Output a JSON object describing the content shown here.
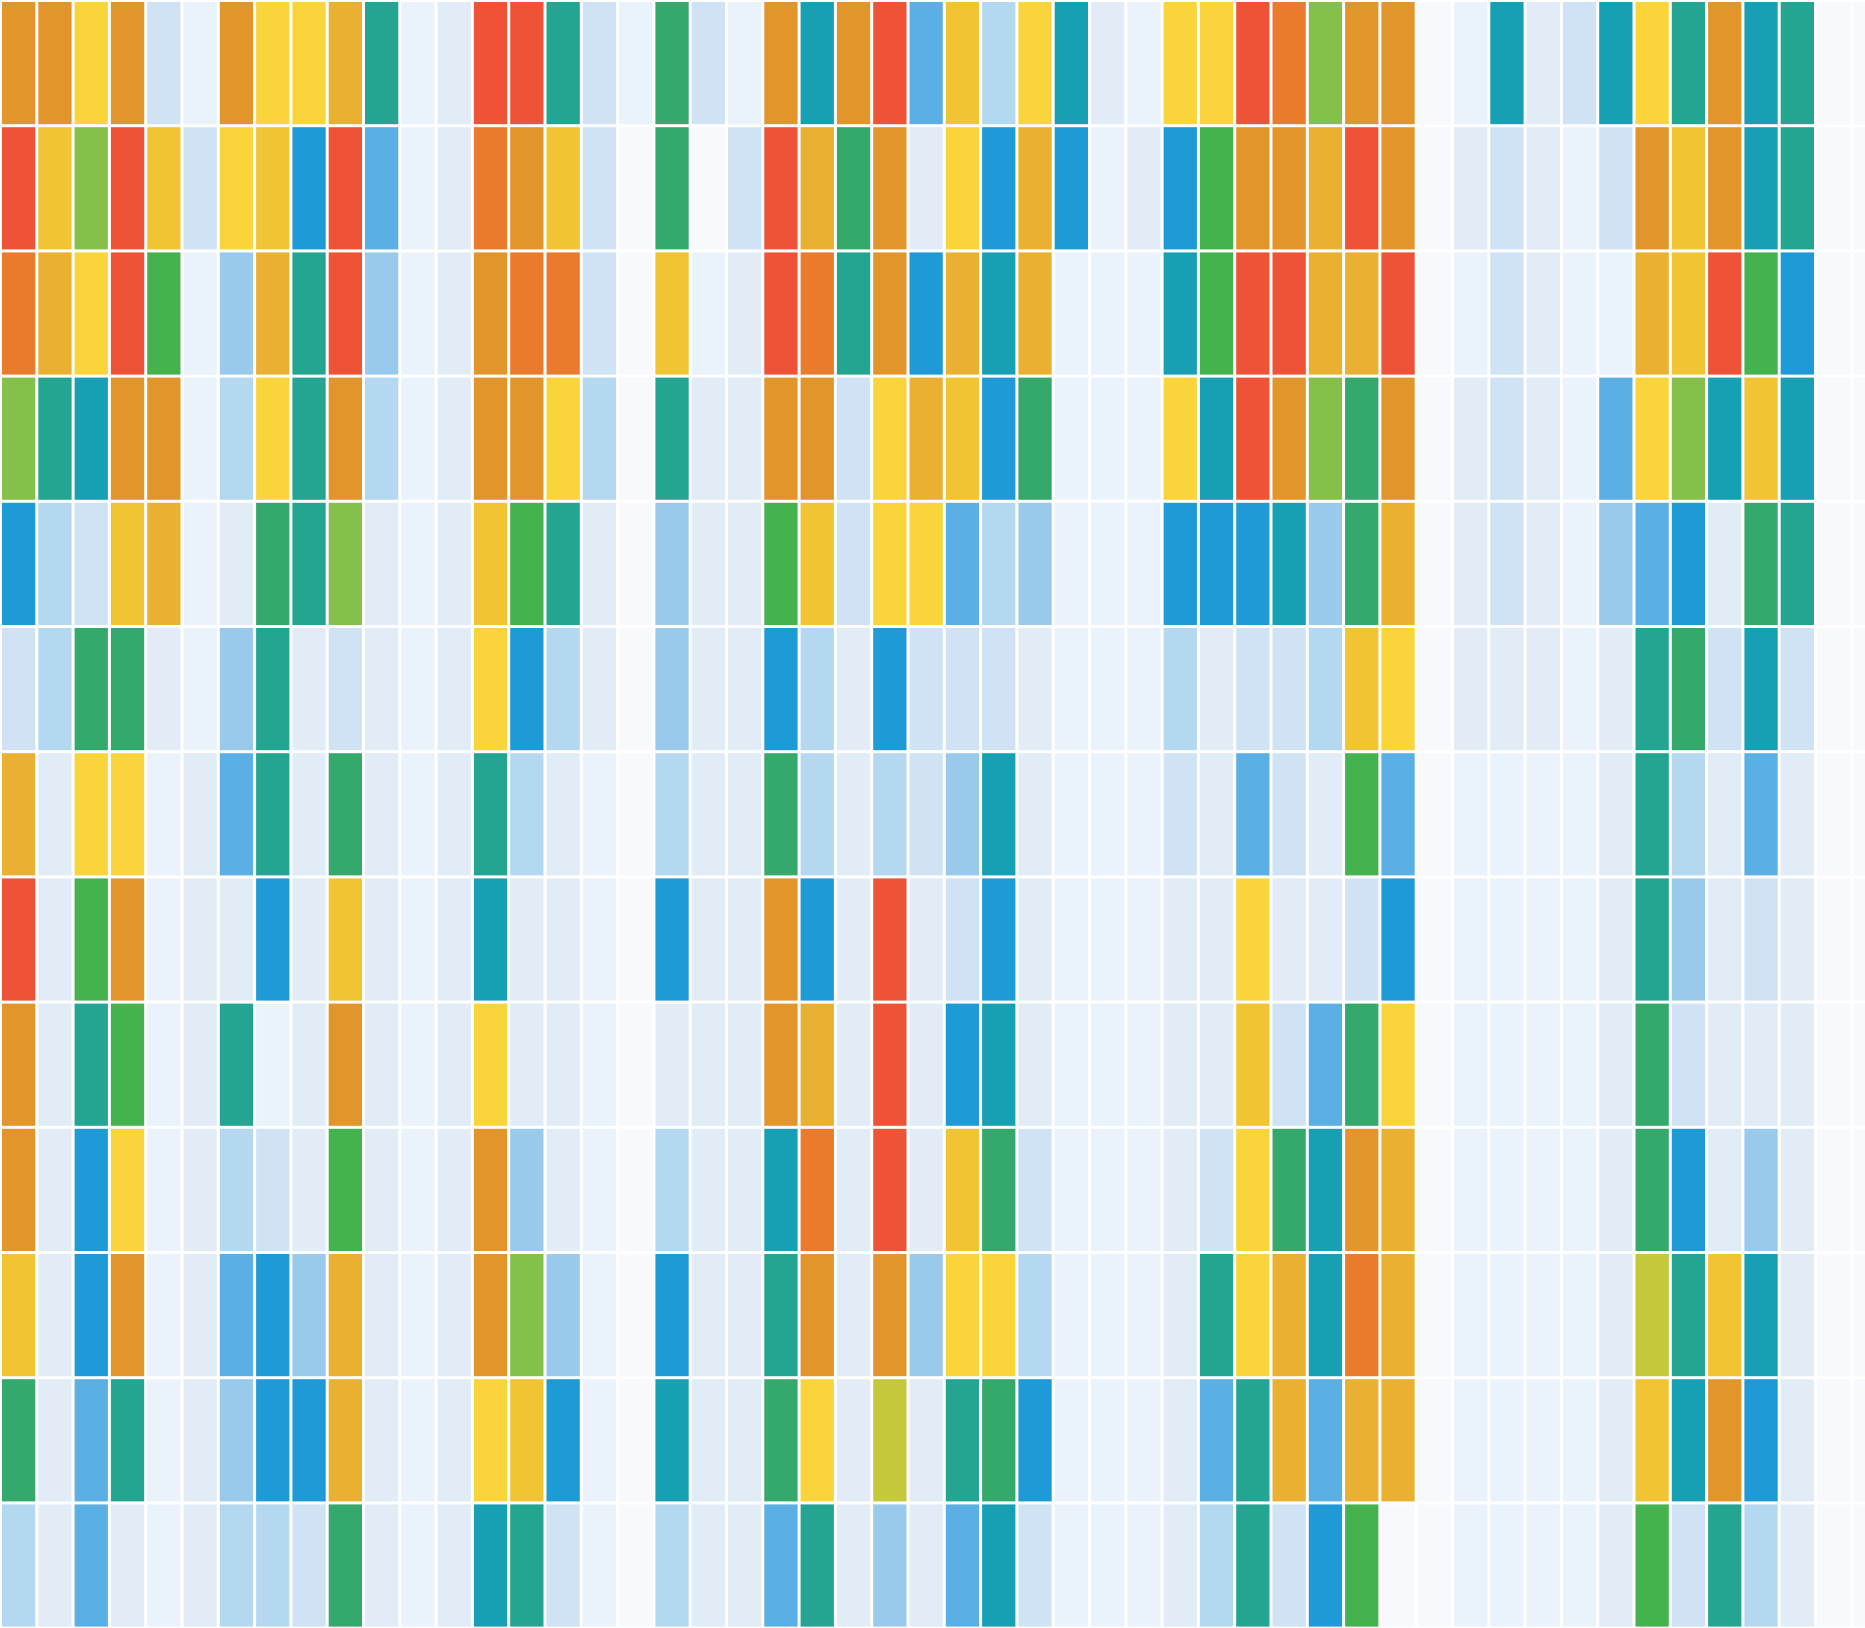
{
  "chart_data": {
    "type": "heatmap",
    "title": "",
    "xlabel": "",
    "ylabel": "",
    "n_rows": 13,
    "n_cols": 52,
    "legend": "none",
    "grid": true,
    "palette": {
      "a": "#e1ecf7",
      "b": "#cfe3f5",
      "c": "#b4d8f0",
      "d": "#99caec",
      "e": "#eaf3fb",
      "f": "#f7f9fc",
      "g": "#dbe9f6",
      "L": "#5ab0e4",
      "B": "#1e9ad6",
      "T": "#17a0b4",
      "Q": "#23a592",
      "G": "#35a86c",
      "g2": "#45b34d",
      "V": "#85c04a",
      "W": "#c4c93c",
      "Y": "#f9d53b",
      "y": "#f0c433",
      "O": "#eab031",
      "o": "#e2952a",
      "N": "#ea7a2c",
      "R": "#ee5237"
    },
    "rows": [
      [
        "o",
        "o",
        "Y",
        "o",
        "b",
        "e",
        "o",
        "Y",
        "Y",
        "O",
        "Q",
        "e",
        "a",
        "R",
        "R",
        "Q",
        "b",
        "e",
        "G",
        "b",
        "e",
        "o",
        "T",
        "o",
        "R",
        "L",
        "y",
        "c",
        "Y",
        "T",
        "a",
        "e",
        "Y",
        "Y",
        "R",
        "N",
        "V",
        "o",
        "o",
        "f",
        "e",
        "T",
        "a",
        "b",
        "T",
        "Y",
        "Q",
        "o",
        "T",
        "Q",
        "f",
        "f"
      ],
      [
        "R",
        "y",
        "V",
        "R",
        "y",
        "b",
        "Y",
        "y",
        "B",
        "R",
        "L",
        "e",
        "a",
        "N",
        "o",
        "y",
        "b",
        "f",
        "G",
        "f",
        "b",
        "R",
        "O",
        "G",
        "o",
        "a",
        "Y",
        "B",
        "O",
        "B",
        "e",
        "a",
        "B",
        "g2",
        "o",
        "o",
        "O",
        "R",
        "o",
        "f",
        "a",
        "b",
        "a",
        "e",
        "b",
        "o",
        "y",
        "o",
        "T",
        "Q",
        "f",
        "f"
      ],
      [
        "N",
        "O",
        "Y",
        "R",
        "g2",
        "e",
        "d",
        "O",
        "Q",
        "R",
        "d",
        "e",
        "a",
        "o",
        "N",
        "N",
        "b",
        "f",
        "y",
        "e",
        "a",
        "R",
        "N",
        "Q",
        "o",
        "B",
        "O",
        "T",
        "O",
        "e",
        "e",
        "e",
        "T",
        "g2",
        "R",
        "R",
        "O",
        "O",
        "R",
        "f",
        "e",
        "b",
        "a",
        "e",
        "e",
        "O",
        "y",
        "R",
        "g2",
        "B",
        "f",
        "f"
      ],
      [
        "V",
        "Q",
        "T",
        "o",
        "o",
        "e",
        "c",
        "Y",
        "Q",
        "o",
        "c",
        "e",
        "a",
        "o",
        "o",
        "Y",
        "c",
        "f",
        "Q",
        "a",
        "a",
        "o",
        "o",
        "b",
        "Y",
        "O",
        "y",
        "B",
        "G",
        "e",
        "e",
        "e",
        "Y",
        "T",
        "R",
        "o",
        "V",
        "G",
        "o",
        "f",
        "a",
        "b",
        "a",
        "e",
        "L",
        "Y",
        "V",
        "T",
        "y",
        "T",
        "f",
        "f"
      ],
      [
        "B",
        "c",
        "b",
        "y",
        "O",
        "e",
        "a",
        "G",
        "Q",
        "V",
        "a",
        "e",
        "a",
        "y",
        "g2",
        "Q",
        "a",
        "f",
        "d",
        "a",
        "a",
        "g2",
        "y",
        "b",
        "Y",
        "Y",
        "L",
        "c",
        "d",
        "e",
        "e",
        "e",
        "B",
        "B",
        "B",
        "T",
        "d",
        "G",
        "O",
        "f",
        "a",
        "b",
        "a",
        "e",
        "d",
        "L",
        "B",
        "a",
        "G",
        "Q",
        "f",
        "f"
      ],
      [
        "b",
        "c",
        "G",
        "G",
        "a",
        "e",
        "d",
        "Q",
        "a",
        "b",
        "a",
        "e",
        "a",
        "Y",
        "B",
        "c",
        "a",
        "f",
        "d",
        "a",
        "a",
        "B",
        "c",
        "a",
        "B",
        "b",
        "b",
        "b",
        "a",
        "e",
        "e",
        "e",
        "c",
        "a",
        "b",
        "b",
        "c",
        "y",
        "Y",
        "f",
        "a",
        "a",
        "a",
        "e",
        "a",
        "Q",
        "G",
        "b",
        "T",
        "b",
        "f",
        "f"
      ],
      [
        "O",
        "a",
        "Y",
        "Y",
        "e",
        "a",
        "L",
        "Q",
        "a",
        "G",
        "a",
        "e",
        "a",
        "Q",
        "c",
        "a",
        "e",
        "f",
        "c",
        "a",
        "a",
        "G",
        "c",
        "a",
        "c",
        "b",
        "d",
        "T",
        "a",
        "e",
        "e",
        "e",
        "b",
        "a",
        "L",
        "b",
        "a",
        "g2",
        "L",
        "f",
        "e",
        "e",
        "e",
        "e",
        "a",
        "Q",
        "c",
        "a",
        "L",
        "a",
        "f",
        "f"
      ],
      [
        "R",
        "a",
        "g2",
        "o",
        "e",
        "a",
        "a",
        "B",
        "a",
        "y",
        "a",
        "e",
        "a",
        "T",
        "a",
        "a",
        "e",
        "f",
        "B",
        "a",
        "a",
        "o",
        "B",
        "a",
        "R",
        "a",
        "b",
        "B",
        "a",
        "e",
        "e",
        "e",
        "a",
        "a",
        "Y",
        "a",
        "a",
        "b",
        "B",
        "f",
        "e",
        "e",
        "e",
        "e",
        "a",
        "Q",
        "d",
        "a",
        "b",
        "a",
        "f",
        "f"
      ],
      [
        "o",
        "a",
        "Q",
        "g2",
        "e",
        "a",
        "Q",
        "e",
        "a",
        "o",
        "a",
        "e",
        "a",
        "Y",
        "a",
        "a",
        "e",
        "f",
        "a",
        "a",
        "a",
        "o",
        "O",
        "a",
        "R",
        "a",
        "B",
        "T",
        "a",
        "e",
        "e",
        "e",
        "a",
        "a",
        "y",
        "b",
        "L",
        "G",
        "Y",
        "f",
        "e",
        "e",
        "e",
        "e",
        "a",
        "G",
        "b",
        "a",
        "a",
        "a",
        "f",
        "f"
      ],
      [
        "o",
        "a",
        "B",
        "Y",
        "e",
        "a",
        "c",
        "b",
        "a",
        "g2",
        "a",
        "e",
        "a",
        "o",
        "d",
        "a",
        "e",
        "f",
        "c",
        "a",
        "a",
        "T",
        "N",
        "a",
        "R",
        "a",
        "y",
        "G",
        "b",
        "e",
        "e",
        "e",
        "a",
        "b",
        "Y",
        "G",
        "T",
        "o",
        "O",
        "f",
        "e",
        "e",
        "e",
        "e",
        "a",
        "G",
        "B",
        "a",
        "d",
        "a",
        "f",
        "f"
      ],
      [
        "y",
        "a",
        "B",
        "o",
        "e",
        "a",
        "L",
        "B",
        "d",
        "O",
        "a",
        "e",
        "a",
        "o",
        "V",
        "d",
        "e",
        "f",
        "B",
        "a",
        "a",
        "Q",
        "o",
        "a",
        "o",
        "d",
        "Y",
        "Y",
        "c",
        "e",
        "e",
        "e",
        "a",
        "Q",
        "Y",
        "O",
        "T",
        "N",
        "O",
        "f",
        "e",
        "e",
        "e",
        "e",
        "a",
        "W",
        "Q",
        "y",
        "T",
        "a",
        "f",
        "f"
      ],
      [
        "G",
        "a",
        "L",
        "Q",
        "e",
        "a",
        "d",
        "B",
        "B",
        "O",
        "a",
        "e",
        "a",
        "Y",
        "y",
        "B",
        "e",
        "f",
        "T",
        "a",
        "a",
        "G",
        "Y",
        "a",
        "W",
        "a",
        "Q",
        "G",
        "B",
        "e",
        "e",
        "e",
        "a",
        "L",
        "Q",
        "O",
        "L",
        "O",
        "O",
        "f",
        "e",
        "e",
        "e",
        "e",
        "a",
        "y",
        "T",
        "o",
        "B",
        "a",
        "f",
        "f"
      ],
      [
        "c",
        "a",
        "L",
        "a",
        "e",
        "a",
        "c",
        "c",
        "b",
        "G",
        "a",
        "e",
        "a",
        "T",
        "Q",
        "b",
        "e",
        "f",
        "c",
        "a",
        "a",
        "L",
        "Q",
        "a",
        "d",
        "a",
        "L",
        "T",
        "b",
        "e",
        "e",
        "e",
        "a",
        "c",
        "Q",
        "b",
        "B",
        "g2",
        "f",
        "f",
        "e",
        "e",
        "e",
        "e",
        "a",
        "g2",
        "b",
        "Q",
        "c",
        "a",
        "f",
        "f"
      ]
    ]
  }
}
